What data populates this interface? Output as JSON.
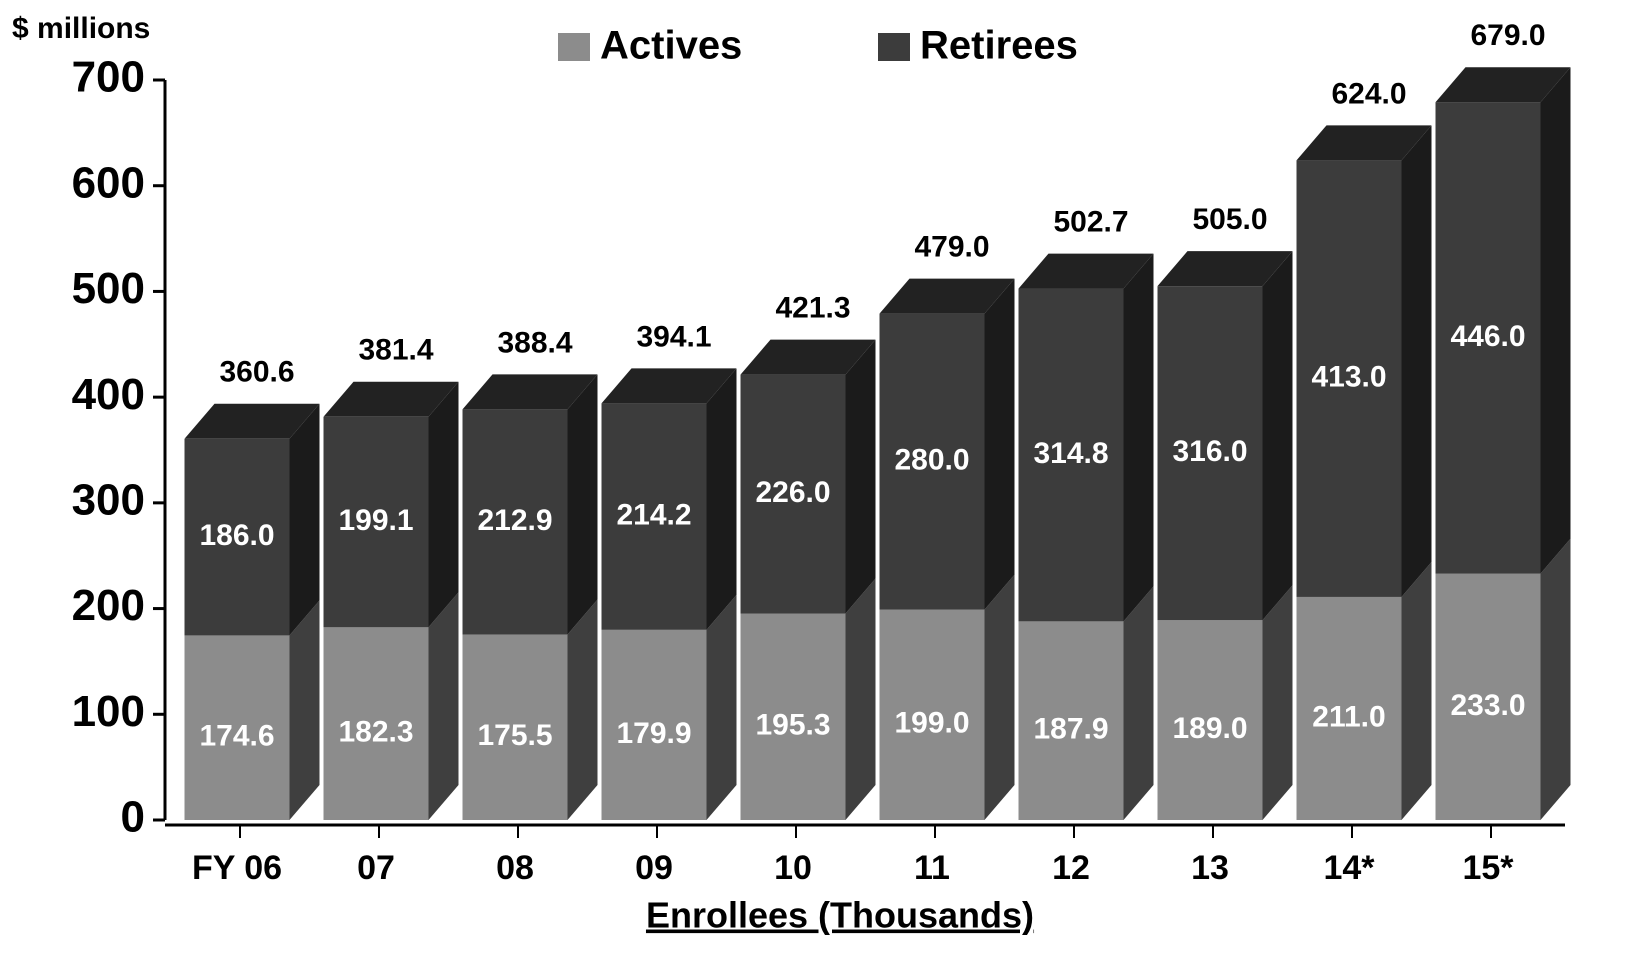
{
  "chart_data": {
    "type": "stacked_bar_3d",
    "y_axis_label": "$ millions",
    "x_axis_label": "Enrollees (Thousands)",
    "categories": [
      "FY 06",
      "07",
      "08",
      "09",
      "10",
      "11",
      "12",
      "13",
      "14*",
      "15*"
    ],
    "series": [
      {
        "name": "Actives",
        "color": "#8c8c8c",
        "values": [
          174.6,
          182.3,
          175.5,
          179.9,
          195.3,
          199.0,
          187.9,
          189.0,
          211.0,
          233.0
        ],
        "value_labels": [
          "174.6",
          "182.3",
          "175.5",
          "179.9",
          "195.3",
          "199.0",
          "187.9",
          "189.0",
          "211.0",
          "233.0"
        ]
      },
      {
        "name": "Retirees",
        "color": "#3c3c3c",
        "values": [
          186.0,
          199.1,
          212.9,
          214.2,
          226.0,
          280.0,
          314.8,
          316.0,
          413.0,
          446.0
        ],
        "value_labels": [
          "186.0",
          "199.1",
          "212.9",
          "214.2",
          "226.0",
          "280.0",
          "314.8",
          "316.0",
          "413.0",
          "446.0"
        ]
      }
    ],
    "total_labels": [
      "360.6",
      "381.4",
      "388.4",
      "394.1",
      "421.3",
      "479.0",
      "502.7",
      "505.0",
      "624.0",
      "679.0"
    ],
    "ylim": [
      0,
      700
    ],
    "yticks": [
      0,
      100,
      200,
      300,
      400,
      500,
      600,
      700
    ]
  }
}
